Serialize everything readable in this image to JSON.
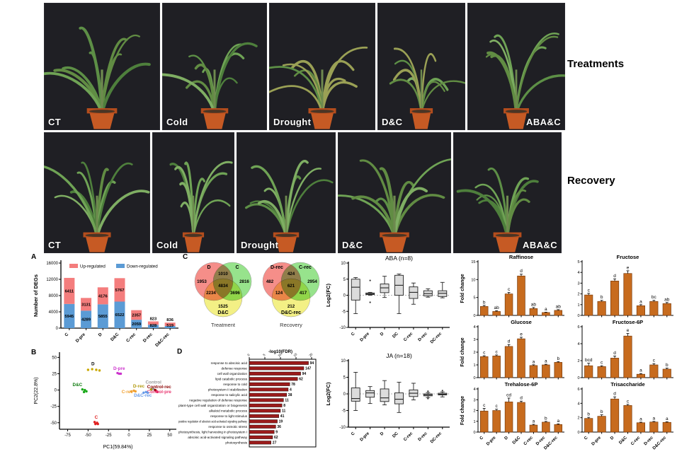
{
  "panels": {
    "a": "A",
    "b": "B",
    "c": "C",
    "d": "D"
  },
  "photos": {
    "treatments_label": "Treatments",
    "recovery_label": "Recovery",
    "row1": [
      "CT",
      "Cold",
      "Drought",
      "D&C",
      "ABA&C"
    ],
    "row2": [
      "CT",
      "Cold",
      "Drought",
      "D&C",
      "ABA&C"
    ]
  },
  "chart_data": [
    {
      "id": "degs",
      "type": "bar",
      "subtype": "stacked",
      "ylabel": "Number of DEGs",
      "ylim": [
        0,
        16000
      ],
      "yticks": [
        0,
        4000,
        8000,
        12000,
        16000
      ],
      "categories": [
        "C",
        "D-pre",
        "D",
        "D&C",
        "C-rec",
        "D-rec",
        "D&C-rec"
      ],
      "series": [
        {
          "name": "Down-regulated",
          "color": "#5b9bd5",
          "values": [
            5945,
            4289,
            5855,
            6522,
            2059,
            828,
            519
          ]
        },
        {
          "name": "Up-regulated",
          "color": "#f47d7d",
          "values": [
            6411,
            3131,
            4176,
            5767,
            2357,
            823,
            836
          ]
        }
      ],
      "legend_order": [
        "Up-regulated",
        "Down-regulated"
      ]
    },
    {
      "id": "pca",
      "type": "scatter",
      "xlabel": "PC1(59.84%)",
      "ylabel": "PC2(22.8%)",
      "xlim": [
        -85,
        58
      ],
      "ylim": [
        -60,
        58
      ],
      "xticks": [
        -75,
        -50,
        -25,
        0,
        25,
        50
      ],
      "yticks": [
        -50,
        -25,
        0,
        25,
        50
      ],
      "groups": [
        {
          "name": "D",
          "color": "#c9a800",
          "label_color": "#000000",
          "label_pos": [
            -44,
            38
          ],
          "points": [
            [
              -50,
              31
            ],
            [
              -45,
              32
            ],
            [
              -40,
              31
            ],
            [
              -36,
              30
            ]
          ]
        },
        {
          "name": "D-pre",
          "color": "#cc33cc",
          "label_color": "#cc33cc",
          "label_pos": [
            -12,
            31
          ],
          "points": [
            [
              -14,
              26
            ],
            [
              -12,
              25
            ],
            [
              -10,
              25
            ]
          ]
        },
        {
          "name": "D&C",
          "color": "#18a818",
          "label_color": "#0d7a0d",
          "label_pos": [
            -63,
            6
          ],
          "points": [
            [
              -57,
              1
            ],
            [
              -54,
              0
            ],
            [
              -52,
              -2
            ],
            [
              -55,
              -3
            ]
          ]
        },
        {
          "name": "C",
          "color": "#e02020",
          "label_color": "#e02020",
          "label_pos": [
            -40,
            -44
          ],
          "points": [
            [
              -42,
              -49
            ],
            [
              -39,
              -50
            ],
            [
              -41,
              -52
            ],
            [
              -38,
              -52
            ]
          ]
        },
        {
          "name": "Control",
          "color": "#9a9a9a",
          "label_color": "#9a9a9a",
          "label_pos": [
            30,
            10
          ],
          "points": [
            [
              28,
              1
            ],
            [
              30,
              2
            ]
          ]
        },
        {
          "name": "D-rec",
          "color": "#b0980a",
          "label_color": "#b0980a",
          "label_pos": [
            12,
            4
          ],
          "points": [
            [
              27,
              1
            ]
          ]
        },
        {
          "name": "Control-rec",
          "color": "#8b0000",
          "label_color": "#8b0000",
          "label_pos": [
            37,
            3
          ],
          "points": [
            [
              32,
              0
            ],
            [
              33,
              -1
            ]
          ]
        },
        {
          "name": "C-rec",
          "color": "#f0a030",
          "label_color": "#f0a030",
          "label_pos": [
            -2,
            -5
          ],
          "points": [
            [
              3,
              -2
            ],
            [
              6,
              -1
            ],
            [
              8,
              -2
            ]
          ]
        },
        {
          "name": "Control-pre",
          "color": "#e8336e",
          "label_color": "#e8336e",
          "label_pos": [
            37,
            -5
          ],
          "points": [
            [
              34,
              -2
            ],
            [
              35,
              -3
            ]
          ]
        },
        {
          "name": "D&C-rec",
          "color": "#6699e8",
          "label_color": "#6699e8",
          "label_pos": [
            17,
            -10
          ],
          "points": [
            [
              18,
              -4
            ],
            [
              21,
              -3
            ],
            [
              23,
              -4
            ]
          ]
        }
      ]
    },
    {
      "id": "venn_treatment",
      "type": "venn",
      "caption": "Treatment",
      "set_a": "D",
      "set_b": "C",
      "set_c": "D&C",
      "a": 1953,
      "b": 2816,
      "c": 1525,
      "ab": 1010,
      "ac": 2234,
      "bc": 3696,
      "abc": 4834,
      "colors": {
        "a": "#f2726b",
        "b": "#7ddc6f",
        "c": "#f0ec67"
      }
    },
    {
      "id": "venn_recovery",
      "type": "venn",
      "caption": "Recovery",
      "set_a": "D-rec",
      "set_b": "C-rec",
      "set_c": "D&C-rec",
      "a": 482,
      "b": 2954,
      "c": 212,
      "ab": 424,
      "ac": 124,
      "bc": 417,
      "abc": 621,
      "colors": {
        "a": "#f2726b",
        "b": "#7ddc6f",
        "c": "#f0ec67"
      }
    },
    {
      "id": "go_terms",
      "type": "bar",
      "orientation": "horizontal",
      "axis_label": "-log10(FDR)",
      "xlim": [
        0,
        20
      ],
      "xticks": [
        0,
        5,
        10,
        15,
        20
      ],
      "bar_color": "#9b1b1b",
      "items": [
        {
          "term": "response to abscisic acid",
          "count": 94,
          "value": 19
        },
        {
          "term": "defense response",
          "count": 147,
          "value": 17.5
        },
        {
          "term": "cell wall organization",
          "count": 94,
          "value": 16.5
        },
        {
          "term": "lipid catabolic process",
          "count": 62,
          "value": 15.5
        },
        {
          "term": "response to cold",
          "count": 78,
          "value": 13
        },
        {
          "term": "photosystem II stabilization",
          "count": 4,
          "value": 12.5
        },
        {
          "term": "response to salicylic acid",
          "count": 38,
          "value": 12
        },
        {
          "term": "negative regulation of defense response",
          "count": 11,
          "value": 11
        },
        {
          "term": "plant-type cell wall organization or biogenesis",
          "count": 8,
          "value": 10.5
        },
        {
          "term": "alkaloid metabolic process",
          "count": 11,
          "value": 10
        },
        {
          "term": "response to light stimulus",
          "count": 41,
          "value": 9.5
        },
        {
          "term": "positive regulation of abscisic acid-activated signaling pathway",
          "count": 19,
          "value": 9
        },
        {
          "term": "response to osmotic stress",
          "count": 36,
          "value": 8.5
        },
        {
          "term": "photosynthesis, light harvesting in photosystem I",
          "count": 9,
          "value": 8
        },
        {
          "term": "abscisic acid-activated signaling pathway",
          "count": 62,
          "value": 7.5
        },
        {
          "term": "photosynthesis",
          "count": 27,
          "value": 7
        }
      ]
    },
    {
      "id": "aba_box",
      "type": "box",
      "title": "ABA (n=8)",
      "ylabel": "Log2(FC)",
      "ylim": [
        -10,
        10
      ],
      "yticks": [
        -10,
        -5,
        0,
        5,
        10
      ],
      "categories": [
        "C",
        "D-pre",
        "D",
        "DC",
        "C-rec",
        "D-rec",
        "DC-rec"
      ],
      "boxes": [
        {
          "lo": -5.7,
          "q1": -1.5,
          "med": 2.5,
          "q3": 5.0,
          "hi": 5.5,
          "outliers": []
        },
        {
          "lo": 0.0,
          "q1": 0.2,
          "med": 0.4,
          "q3": 0.7,
          "hi": 0.9,
          "outliers": [
            4.6,
            -2.2
          ]
        },
        {
          "lo": -0.7,
          "q1": 0.8,
          "med": 2.3,
          "q3": 3.5,
          "hi": 5.9,
          "outliers": []
        },
        {
          "lo": -5.7,
          "q1": 0.0,
          "med": 3.1,
          "q3": 6.2,
          "hi": 6.6,
          "outliers": []
        },
        {
          "lo": -2.8,
          "q1": -1.0,
          "med": 0.9,
          "q3": 2.6,
          "hi": 3.8,
          "outliers": []
        },
        {
          "lo": -0.6,
          "q1": -0.2,
          "med": 0.5,
          "q3": 1.4,
          "hi": 2.0,
          "outliers": []
        },
        {
          "lo": -0.8,
          "q1": -0.4,
          "med": 0.6,
          "q3": 1.4,
          "hi": 4.0,
          "outliers": []
        }
      ]
    },
    {
      "id": "ja_box",
      "type": "box",
      "title": "JA (n=18)",
      "ylabel": "Log2(FC)",
      "ylim": [
        -10,
        10
      ],
      "yticks": [
        -10,
        -5,
        0,
        5,
        10
      ],
      "categories": [
        "C",
        "D-pre",
        "D",
        "DC",
        "C-rec",
        "D-rec",
        "DC-rec"
      ],
      "boxes": [
        {
          "lo": -5.0,
          "q1": -2.2,
          "med": -1.4,
          "q3": 1.8,
          "hi": 6.5,
          "outliers": []
        },
        {
          "lo": -2.9,
          "q1": -1.0,
          "med": 0.3,
          "q3": 1.0,
          "hi": 2.2,
          "outliers": []
        },
        {
          "lo": -3.3,
          "q1": -2.3,
          "med": -1.2,
          "q3": 1.5,
          "hi": 4.0,
          "outliers": []
        },
        {
          "lo": -5.6,
          "q1": -3.0,
          "med": -1.6,
          "q3": 0.3,
          "hi": 3.5,
          "outliers": []
        },
        {
          "lo": -1.8,
          "q1": -0.8,
          "med": 0.2,
          "q3": 1.2,
          "hi": 3.2,
          "outliers": []
        },
        {
          "lo": -1.1,
          "q1": -0.6,
          "med": -0.3,
          "q3": 0.0,
          "hi": 0.4,
          "outliers": [
            0.8,
            -1.4
          ]
        },
        {
          "lo": -0.9,
          "q1": -0.3,
          "med": -0.1,
          "q3": 0.2,
          "hi": 0.6,
          "outliers": [
            1.0
          ]
        }
      ]
    },
    {
      "id": "raffinose",
      "type": "bar",
      "title": "Raffinose",
      "ylabel": "Fold change",
      "ylim": [
        0,
        15
      ],
      "yticks": [
        0,
        5,
        10,
        15
      ],
      "bar_color": "#c76b1e",
      "show_xlabels": false,
      "categories": [
        "C",
        "D-pre",
        "D",
        "D&C",
        "C-rec",
        "D-rec",
        "D&C-rec"
      ],
      "values": [
        2.5,
        1.1,
        6.0,
        11.0,
        1.9,
        0.8,
        1.4
      ],
      "errors": [
        0.3,
        0.2,
        0.4,
        0.5,
        0.3,
        0.1,
        0.2
      ],
      "letters": [
        "b",
        "ab",
        "c",
        "d",
        "ab",
        "a",
        "ab"
      ]
    },
    {
      "id": "fructose",
      "type": "bar",
      "title": "Fructose",
      "ylabel": "",
      "ylim": [
        0,
        5
      ],
      "yticks": [
        0,
        1,
        2,
        3,
        4,
        5
      ],
      "bar_color": "#c76b1e",
      "show_xlabels": false,
      "categories": [
        "C",
        "D-pre",
        "D",
        "D&C",
        "C-rec",
        "D-rec",
        "D&C-rec"
      ],
      "values": [
        1.9,
        1.3,
        3.2,
        3.9,
        0.9,
        1.3,
        1.1
      ],
      "errors": [
        0.15,
        0.1,
        0.2,
        0.25,
        0.1,
        0.1,
        0.1
      ],
      "letters": [
        "c",
        "b",
        "d",
        "e",
        "a",
        "bc",
        "ab"
      ]
    },
    {
      "id": "glucose",
      "type": "bar",
      "title": "Glucose",
      "ylabel": "Fold change",
      "ylim": [
        0,
        4
      ],
      "yticks": [
        0,
        1,
        2,
        3,
        4
      ],
      "bar_color": "#c76b1e",
      "show_xlabels": false,
      "categories": [
        "C",
        "D-pre",
        "D",
        "D&C",
        "C-rec",
        "D-rec",
        "D&C-rec"
      ],
      "values": [
        1.65,
        1.7,
        2.45,
        3.05,
        0.95,
        1.0,
        1.2
      ],
      "errors": [
        0.07,
        0.08,
        0.15,
        0.12,
        0.06,
        0.05,
        0.06
      ],
      "letters": [
        "c",
        "c",
        "d",
        "e",
        "a",
        "a",
        "b"
      ]
    },
    {
      "id": "fructose6p",
      "type": "bar",
      "title": "Fructose-6P",
      "ylabel": "",
      "ylim": [
        0,
        6
      ],
      "yticks": [
        0,
        2,
        4,
        6
      ],
      "bar_color": "#c76b1e",
      "show_xlabels": false,
      "categories": [
        "C",
        "D-pre",
        "D",
        "D&C",
        "C-rec",
        "D-rec",
        "D&C-rec"
      ],
      "values": [
        1.4,
        1.3,
        2.3,
        4.9,
        0.4,
        1.5,
        1.0
      ],
      "errors": [
        0.3,
        0.1,
        0.25,
        0.3,
        0.08,
        0.15,
        0.12
      ],
      "letters": [
        "bcd",
        "c",
        "d",
        "e",
        "a",
        "c",
        "b"
      ]
    },
    {
      "id": "trehalose6p",
      "type": "bar",
      "title": "Trehalose-6P",
      "ylabel": "Fold change",
      "ylim": [
        0,
        4
      ],
      "yticks": [
        0,
        1,
        2,
        3,
        4
      ],
      "bar_color": "#c76b1e",
      "show_xlabels": true,
      "categories": [
        "C",
        "D-pre",
        "D",
        "D&C",
        "C-rec",
        "D-rec",
        "D&C-rec"
      ],
      "values": [
        1.95,
        2.0,
        2.8,
        2.75,
        0.65,
        0.92,
        0.7
      ],
      "errors": [
        0.25,
        0.12,
        0.35,
        0.12,
        0.07,
        0.07,
        0.06
      ],
      "letters": [
        "c",
        "c",
        "cd",
        "d",
        "a",
        "b",
        "a"
      ]
    },
    {
      "id": "trisaccharide",
      "type": "bar",
      "title": "Trisaccharide",
      "ylabel": "",
      "ylim": [
        0,
        6
      ],
      "yticks": [
        0,
        2,
        4,
        6
      ],
      "bar_color": "#c76b1e",
      "show_xlabels": true,
      "categories": [
        "C",
        "D-pre",
        "D",
        "D&C",
        "C-rec",
        "D-rec",
        "D&C-rec"
      ],
      "values": [
        1.9,
        2.2,
        4.6,
        3.7,
        1.3,
        1.4,
        1.35
      ],
      "errors": [
        0.15,
        0.2,
        0.3,
        0.15,
        0.08,
        0.08,
        0.08
      ],
      "letters": [
        "b",
        "b",
        "d",
        "c",
        "a",
        "a",
        "a"
      ]
    }
  ]
}
